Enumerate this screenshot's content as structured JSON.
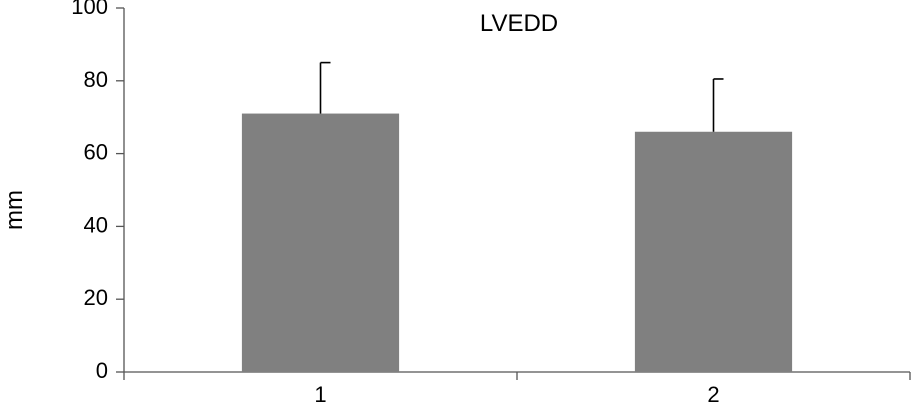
{
  "chart_data": {
    "type": "bar",
    "title": "LVEDD",
    "xlabel": "",
    "ylabel": "mm",
    "categories": [
      "1",
      "2"
    ],
    "values": [
      71,
      66
    ],
    "error_upper": [
      85,
      80.5
    ],
    "ylim": [
      0,
      100
    ],
    "yticks": [
      "0",
      "20",
      "40",
      "60",
      "80",
      "100"
    ],
    "grid": false,
    "legend": "none",
    "bar_color": "#808080"
  }
}
